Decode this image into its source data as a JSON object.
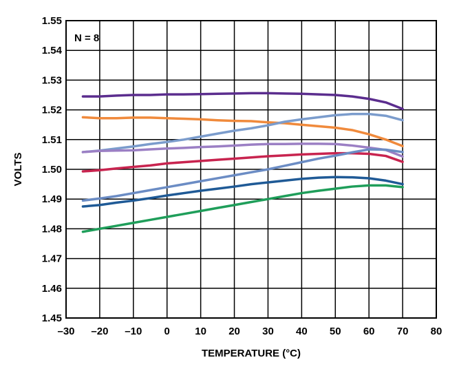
{
  "chart_data": {
    "type": "line",
    "title": "",
    "annotation": "N = 8",
    "xlabel": "TEMPERATURE (°C)",
    "ylabel": "VOLTS",
    "xlim": [
      -30,
      80
    ],
    "ylim": [
      1.45,
      1.55
    ],
    "xticks": [
      "–30",
      "–20",
      "–10",
      "0",
      "10",
      "20",
      "30",
      "40",
      "50",
      "60",
      "70",
      "80"
    ],
    "yticks": [
      "1.45",
      "1.46",
      "1.47",
      "1.48",
      "1.49",
      "1.50",
      "1.51",
      "1.52",
      "1.53",
      "1.54",
      "1.55"
    ],
    "grid": true,
    "legend": "none",
    "x": [
      -25,
      -20,
      -15,
      -10,
      -5,
      0,
      5,
      10,
      15,
      20,
      25,
      30,
      35,
      40,
      45,
      50,
      55,
      60,
      65,
      70
    ],
    "series": [
      {
        "color": "#5b2d8e",
        "values": [
          1.5245,
          1.5245,
          1.5248,
          1.525,
          1.525,
          1.5252,
          1.5252,
          1.5253,
          1.5254,
          1.5255,
          1.5256,
          1.5256,
          1.5255,
          1.5254,
          1.5252,
          1.525,
          1.5245,
          1.5237,
          1.5225,
          1.5203
        ]
      },
      {
        "color": "#f08a3c",
        "values": [
          1.5175,
          1.5172,
          1.5172,
          1.5174,
          1.5174,
          1.5172,
          1.517,
          1.5168,
          1.5165,
          1.5163,
          1.5162,
          1.5158,
          1.5155,
          1.515,
          1.5145,
          1.514,
          1.5132,
          1.5118,
          1.51,
          1.5078
        ]
      },
      {
        "color": "#7b9ccc",
        "values": [
          1.5058,
          1.5063,
          1.507,
          1.5077,
          1.5085,
          1.5092,
          1.51,
          1.511,
          1.512,
          1.513,
          1.5138,
          1.5148,
          1.516,
          1.5168,
          1.5175,
          1.5182,
          1.5186,
          1.5186,
          1.518,
          1.5165
        ]
      },
      {
        "color": "#9b7fc4",
        "values": [
          1.5058,
          1.5062,
          1.5063,
          1.5064,
          1.5067,
          1.507,
          1.5072,
          1.5075,
          1.5077,
          1.508,
          1.5083,
          1.5085,
          1.5085,
          1.5086,
          1.5086,
          1.5085,
          1.508,
          1.5073,
          1.5065,
          1.5043
        ]
      },
      {
        "color": "#c8244f",
        "values": [
          1.4993,
          1.4997,
          1.5003,
          1.5008,
          1.5013,
          1.502,
          1.5024,
          1.5028,
          1.5032,
          1.5036,
          1.504,
          1.5044,
          1.5047,
          1.505,
          1.5052,
          1.5054,
          1.5054,
          1.5052,
          1.5045,
          1.5025
        ]
      },
      {
        "color": "#6b8cc4",
        "values": [
          1.4895,
          1.4902,
          1.491,
          1.492,
          1.493,
          1.494,
          1.495,
          1.496,
          1.497,
          1.498,
          1.499,
          1.5,
          1.5012,
          1.5024,
          1.5036,
          1.5046,
          1.5057,
          1.5067,
          1.5066,
          1.5058
        ]
      },
      {
        "color": "#1f5a96",
        "values": [
          1.4875,
          1.488,
          1.4888,
          1.4895,
          1.4903,
          1.4912,
          1.492,
          1.4928,
          1.4935,
          1.4942,
          1.495,
          1.4956,
          1.4962,
          1.4968,
          1.4972,
          1.4974,
          1.4973,
          1.497,
          1.4962,
          1.495
        ]
      },
      {
        "color": "#1f9e5a",
        "values": [
          1.479,
          1.48,
          1.481,
          1.482,
          1.483,
          1.484,
          1.485,
          1.486,
          1.487,
          1.488,
          1.489,
          1.49,
          1.491,
          1.492,
          1.4928,
          1.4935,
          1.4942,
          1.4946,
          1.4946,
          1.494
        ]
      }
    ]
  }
}
